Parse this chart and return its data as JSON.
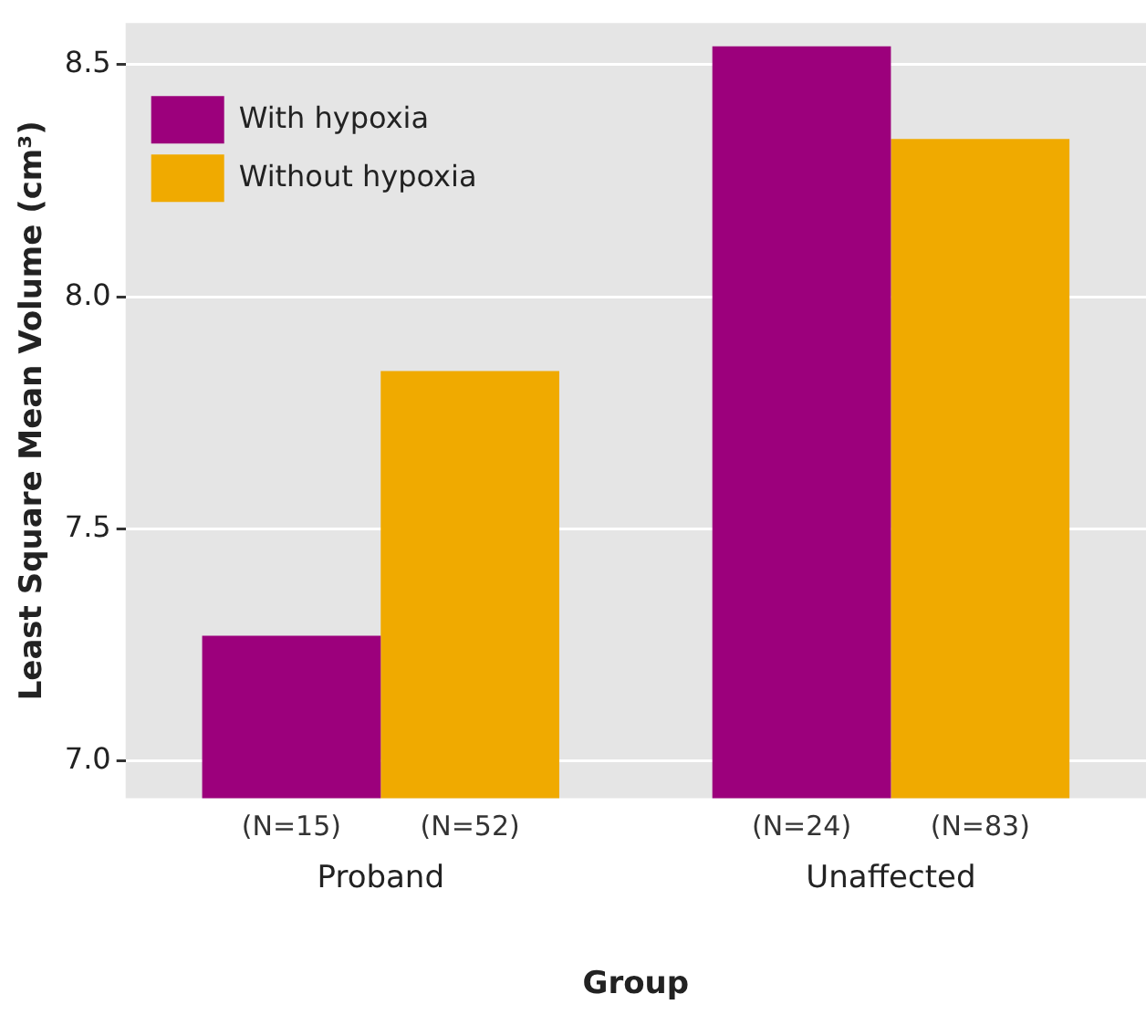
{
  "chart_data": {
    "type": "bar",
    "xlabel": "Group",
    "ylabel": "Least Square Mean Volume (cm³)",
    "categories": [
      "Proband",
      "Unaffected"
    ],
    "series": [
      {
        "name": "With hypoxia",
        "color": "#9c007c",
        "values": [
          7.27,
          8.54
        ]
      },
      {
        "name": "Without hypoxia",
        "color": "#f0aa00",
        "values": [
          7.84,
          8.34
        ]
      }
    ],
    "annotations": [
      {
        "text": "(N=15)",
        "x": "Proband"
      },
      {
        "text": "(N=52)",
        "x": "Proband"
      },
      {
        "text": "(N=24)",
        "x": "Unaffected"
      },
      {
        "text": "(N=83)",
        "x": "Unaffected"
      }
    ],
    "ylim": [
      6.92,
      8.59
    ],
    "yticks": [
      {
        "value": 7,
        "label": "7.0"
      },
      {
        "value": 7.5,
        "label": "7.5"
      },
      {
        "value": 8,
        "label": "8.0"
      },
      {
        "value": 8.5,
        "label": "8.5"
      }
    ],
    "grid": "y",
    "legend": "top left"
  }
}
